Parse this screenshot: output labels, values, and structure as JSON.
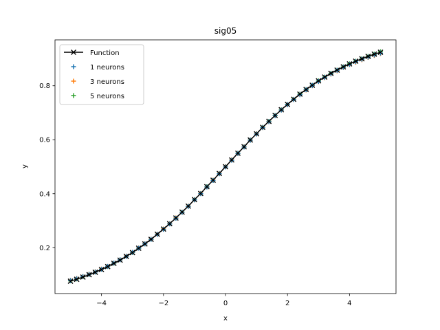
{
  "chart_data": {
    "type": "line",
    "title": "sig05",
    "xlabel": "x",
    "ylabel": "y",
    "xlim": [
      -5.5,
      5.5
    ],
    "ylim": [
      0.03,
      0.97
    ],
    "xticks": [
      -4,
      -2,
      0,
      2,
      4
    ],
    "xtick_labels": [
      "−4",
      "−2",
      "0",
      "2",
      "4"
    ],
    "yticks": [
      0.2,
      0.4,
      0.6,
      0.8
    ],
    "ytick_labels": [
      "0.2",
      "0.4",
      "0.6",
      "0.8"
    ],
    "grid": false,
    "legend_position": "top-left",
    "x": [
      -5.0,
      -4.8,
      -4.6,
      -4.4,
      -4.2,
      -4.0,
      -3.8,
      -3.6,
      -3.4,
      -3.2,
      -3.0,
      -2.8,
      -2.6,
      -2.4,
      -2.2,
      -2.0,
      -1.8,
      -1.6,
      -1.4,
      -1.2,
      -1.0,
      -0.8,
      -0.6,
      -0.4,
      -0.2,
      0.0,
      0.2,
      0.4,
      0.6,
      0.8,
      1.0,
      1.2,
      1.4,
      1.6,
      1.8,
      2.0,
      2.2,
      2.4,
      2.6,
      2.8,
      3.0,
      3.2,
      3.4,
      3.6,
      3.8,
      4.0,
      4.2,
      4.4,
      4.6,
      4.8,
      5.0
    ],
    "series": [
      {
        "name": "Function",
        "style": "line-x",
        "color": "#000000",
        "values": [
          0.076,
          0.083,
          0.091,
          0.1,
          0.109,
          0.119,
          0.13,
          0.142,
          0.154,
          0.168,
          0.182,
          0.198,
          0.214,
          0.231,
          0.25,
          0.269,
          0.289,
          0.31,
          0.332,
          0.354,
          0.378,
          0.401,
          0.426,
          0.45,
          0.475,
          0.5,
          0.525,
          0.55,
          0.574,
          0.599,
          0.622,
          0.646,
          0.668,
          0.69,
          0.711,
          0.731,
          0.75,
          0.769,
          0.786,
          0.802,
          0.818,
          0.832,
          0.846,
          0.858,
          0.87,
          0.881,
          0.891,
          0.9,
          0.909,
          0.917,
          0.924
        ]
      },
      {
        "name": "1 neurons",
        "style": "plus",
        "color": "#1f77b4",
        "values": [
          0.078,
          0.085,
          0.093,
          0.101,
          0.11,
          0.12,
          0.131,
          0.143,
          0.155,
          0.168,
          0.183,
          0.198,
          0.214,
          0.231,
          0.249,
          0.268,
          0.288,
          0.309,
          0.331,
          0.353,
          0.377,
          0.4,
          0.425,
          0.449,
          0.474,
          0.499,
          0.524,
          0.549,
          0.573,
          0.598,
          0.621,
          0.645,
          0.667,
          0.689,
          0.71,
          0.73,
          0.749,
          0.767,
          0.785,
          0.801,
          0.816,
          0.831,
          0.844,
          0.857,
          0.868,
          0.879,
          0.889,
          0.898,
          0.906,
          0.914,
          0.921
        ]
      },
      {
        "name": "3 neurons",
        "style": "plus",
        "color": "#ff7f0e",
        "values": [
          0.079,
          0.086,
          0.093,
          0.102,
          0.111,
          0.121,
          0.131,
          0.143,
          0.155,
          0.169,
          0.183,
          0.199,
          0.215,
          0.232,
          0.25,
          0.269,
          0.289,
          0.31,
          0.331,
          0.354,
          0.377,
          0.401,
          0.425,
          0.45,
          0.475,
          0.5,
          0.525,
          0.549,
          0.574,
          0.598,
          0.622,
          0.645,
          0.667,
          0.689,
          0.71,
          0.73,
          0.749,
          0.767,
          0.784,
          0.8,
          0.815,
          0.83,
          0.843,
          0.855,
          0.867,
          0.878,
          0.887,
          0.896,
          0.905,
          0.912,
          0.919
        ]
      },
      {
        "name": "5 neurons",
        "style": "plus",
        "color": "#2ca02c",
        "values": [
          0.077,
          0.084,
          0.092,
          0.101,
          0.11,
          0.12,
          0.13,
          0.142,
          0.155,
          0.168,
          0.182,
          0.198,
          0.214,
          0.231,
          0.25,
          0.269,
          0.289,
          0.31,
          0.332,
          0.354,
          0.378,
          0.401,
          0.426,
          0.45,
          0.475,
          0.5,
          0.525,
          0.55,
          0.574,
          0.599,
          0.622,
          0.646,
          0.668,
          0.69,
          0.711,
          0.731,
          0.75,
          0.769,
          0.786,
          0.802,
          0.818,
          0.832,
          0.846,
          0.858,
          0.87,
          0.881,
          0.891,
          0.9,
          0.909,
          0.917,
          0.926
        ]
      }
    ]
  }
}
